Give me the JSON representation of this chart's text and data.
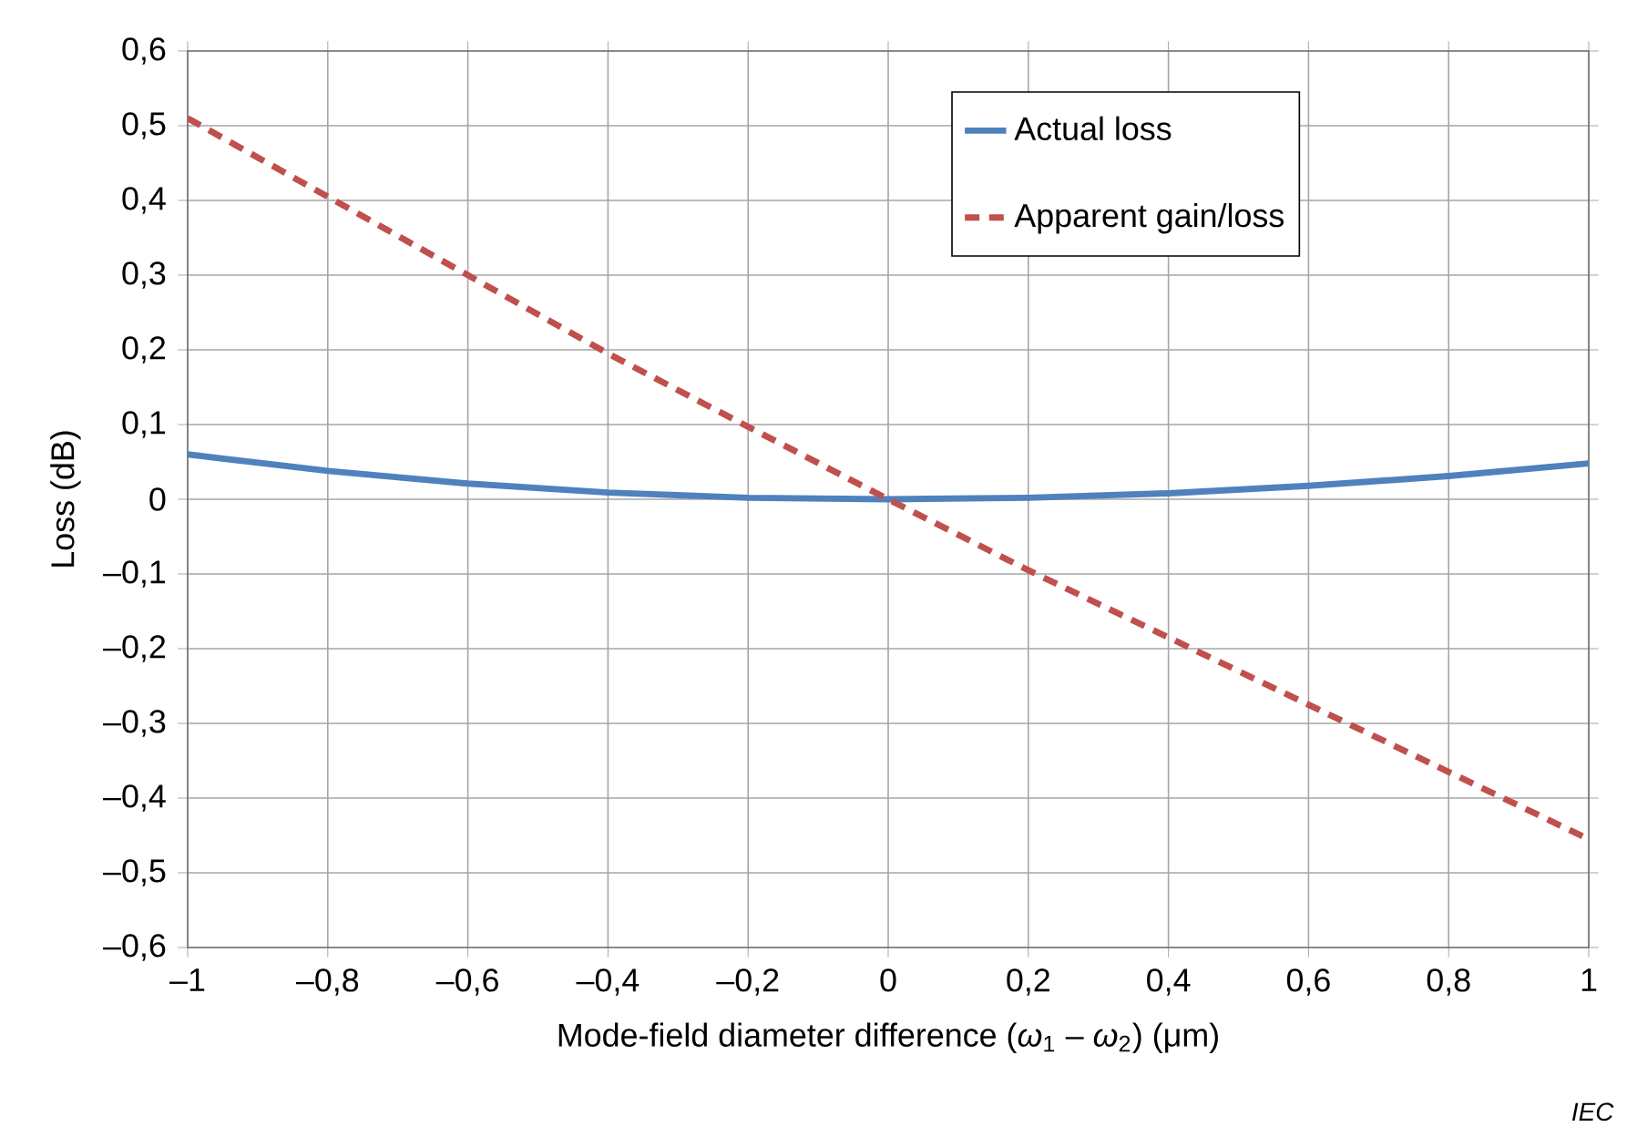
{
  "chart_data": {
    "type": "line",
    "xlabel": "Mode-field diameter difference (*ω*$_{1}$ – *ω*$_{2}$)  (μm)",
    "ylabel": "Loss  (dB)",
    "x": [
      -1,
      -0.8,
      -0.6,
      -0.4,
      -0.2,
      0,
      0.2,
      0.4,
      0.6,
      0.8,
      1
    ],
    "series": [
      {
        "name": "Actual loss",
        "color": "#4f81bd",
        "line_style": "solid",
        "values": [
          0.06,
          0.038,
          0.021,
          0.009,
          0.002,
          0,
          0.002,
          0.008,
          0.018,
          0.031,
          0.048
        ]
      },
      {
        "name": "Apparent gain/loss",
        "color": "#c0504d",
        "line_style": "dashed",
        "values": [
          0.51,
          0.405,
          0.3,
          0.195,
          0.097,
          0,
          -0.095,
          -0.185,
          -0.275,
          -0.365,
          -0.455
        ]
      }
    ],
    "xlim": [
      -1,
      1
    ],
    "xticks": [
      {
        "value": -1,
        "label": "–1"
      },
      {
        "value": -0.8,
        "label": "–0,8"
      },
      {
        "value": -0.6,
        "label": "–0,6"
      },
      {
        "value": -0.4,
        "label": "–0,4"
      },
      {
        "value": -0.2,
        "label": "–0,2"
      },
      0,
      {
        "value": 0.2,
        "label": "0,2"
      },
      {
        "value": 0.4,
        "label": "0,4"
      },
      {
        "value": 0.6,
        "label": "0,6"
      },
      {
        "value": 0.8,
        "label": "0,8"
      },
      1
    ],
    "ylim": [
      -0.6,
      0.6
    ],
    "yticks": [
      {
        "value": -0.6,
        "label": "–0,6"
      },
      {
        "value": -0.5,
        "label": "–0,5"
      },
      {
        "value": -0.4,
        "label": "–0,4"
      },
      {
        "value": -0.3,
        "label": "–0,3"
      },
      {
        "value": -0.2,
        "label": "–0,2"
      },
      {
        "value": -0.1,
        "label": "–0,1"
      },
      0,
      {
        "value": 0.1,
        "label": "0,1"
      },
      {
        "value": 0.2,
        "label": "0,2"
      },
      {
        "value": 0.3,
        "label": "0,3"
      },
      {
        "value": 0.4,
        "label": "0,4"
      },
      {
        "value": 0.5,
        "label": "0,5"
      },
      {
        "value": 0.6,
        "label": "0,6"
      }
    ],
    "grid": true,
    "legend": "top right",
    "marker": "none",
    "annotations": [
      "*IEC*"
    ]
  }
}
